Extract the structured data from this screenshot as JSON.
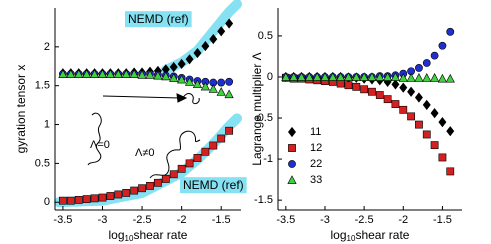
{
  "chart_data": [
    {
      "type": "scatter",
      "ylabel": "gyration tensor  x",
      "xlabel": [
        "log",
        "10",
        "shear rate"
      ],
      "x": [
        -3.5,
        -3.4,
        -3.3,
        -3.2,
        -3.1,
        -3,
        -2.9,
        -2.8,
        -2.7,
        -2.6,
        -2.5,
        -2.4,
        -2.3,
        -2.2,
        -2.1,
        -2,
        -1.9,
        -1.8,
        -1.7,
        -1.6,
        -1.5,
        -1.4
      ],
      "series": [
        {
          "marker": "diamond",
          "color": "#000000",
          "values": [
            1.66,
            1.66,
            1.66,
            1.66,
            1.66,
            1.66,
            1.66,
            1.66,
            1.66,
            1.67,
            1.67,
            1.68,
            1.69,
            1.71,
            1.74,
            1.78,
            1.84,
            1.92,
            2.01,
            2.1,
            2.2,
            2.3
          ]
        },
        {
          "marker": "square",
          "color": "#d42020",
          "values": [
            0.02,
            0.02,
            0.03,
            0.04,
            0.05,
            0.06,
            0.08,
            0.1,
            0.12,
            0.15,
            0.18,
            0.21,
            0.25,
            0.3,
            0.36,
            0.43,
            0.5,
            0.57,
            0.65,
            0.73,
            0.82,
            0.92
          ]
        },
        {
          "marker": "circle",
          "color": "#2030d0",
          "values": [
            1.65,
            1.65,
            1.65,
            1.65,
            1.65,
            1.65,
            1.65,
            1.65,
            1.65,
            1.65,
            1.65,
            1.65,
            1.64,
            1.63,
            1.62,
            1.6,
            1.58,
            1.56,
            1.55,
            1.54,
            1.54,
            1.55
          ]
        },
        {
          "marker": "triangle",
          "color": "#40d040",
          "values": [
            1.65,
            1.65,
            1.65,
            1.65,
            1.65,
            1.65,
            1.65,
            1.65,
            1.65,
            1.65,
            1.64,
            1.64,
            1.63,
            1.62,
            1.6,
            1.58,
            1.55,
            1.52,
            1.49,
            1.46,
            1.42,
            1.39
          ]
        }
      ],
      "reference": [
        {
          "label": "NEMD (ref)",
          "color": "#86e2f2",
          "x": [
            -2.2,
            -2,
            -1.8,
            -1.6,
            -1.4,
            -1.3
          ],
          "values": [
            1.7,
            1.8,
            1.95,
            2.2,
            2.45,
            2.55
          ]
        },
        {
          "label": "NEMD (ref)",
          "color": "#86e2f2",
          "x": [
            -3.55,
            -3,
            -2.5,
            -2,
            -1.8,
            -1.6,
            -1.4,
            -1.3
          ],
          "values": [
            0,
            0.02,
            0.12,
            0.38,
            0.55,
            0.75,
            0.98,
            1.08
          ]
        }
      ],
      "annotations": [
        "Λ=0",
        "Λ≠0"
      ],
      "xlim": [
        -3.6,
        -1.25
      ],
      "ylim": [
        -0.1,
        2.5
      ],
      "xticks": [
        -3.5,
        -3,
        -2.5,
        -2,
        -1.5
      ],
      "yticks": [
        0,
        0.5,
        1,
        1.5,
        2
      ]
    },
    {
      "type": "scatter",
      "ylabel": "Lagrange multiplier  Λ",
      "xlabel": [
        "log",
        "10",
        "shear rate"
      ],
      "x": [
        -3.5,
        -3.4,
        -3.3,
        -3.2,
        -3.1,
        -3,
        -2.9,
        -2.8,
        -2.7,
        -2.6,
        -2.5,
        -2.4,
        -2.3,
        -2.2,
        -2.1,
        -2,
        -1.9,
        -1.8,
        -1.7,
        -1.6,
        -1.5,
        -1.4
      ],
      "series": [
        {
          "name": "11",
          "marker": "diamond",
          "color": "#000000",
          "values": [
            0,
            0,
            0,
            0,
            0,
            0,
            0,
            0,
            -0.01,
            -0.01,
            -0.02,
            -0.03,
            -0.04,
            -0.06,
            -0.09,
            -0.13,
            -0.18,
            -0.25,
            -0.34,
            -0.44,
            -0.55,
            -0.66
          ]
        },
        {
          "name": "12",
          "marker": "square",
          "color": "#d42020",
          "values": [
            -0.01,
            -0.02,
            -0.02,
            -0.03,
            -0.04,
            -0.05,
            -0.06,
            -0.08,
            -0.1,
            -0.12,
            -0.15,
            -0.18,
            -0.22,
            -0.27,
            -0.33,
            -0.4,
            -0.48,
            -0.58,
            -0.7,
            -0.83,
            -0.98,
            -1.15
          ]
        },
        {
          "name": "22",
          "marker": "circle",
          "color": "#2030d0",
          "values": [
            0,
            0,
            0,
            0,
            0,
            0,
            0,
            0,
            0,
            0,
            0,
            0,
            0.01,
            0.01,
            0.02,
            0.04,
            0.07,
            0.11,
            0.17,
            0.26,
            0.38,
            0.55
          ]
        },
        {
          "name": "33",
          "marker": "triangle",
          "color": "#40d040",
          "values": [
            0,
            0,
            0,
            0,
            0,
            0,
            0,
            0,
            0,
            0,
            0,
            0,
            0,
            0,
            0,
            -0.01,
            -0.01,
            -0.01,
            -0.01,
            -0.01,
            -0.02,
            -0.02
          ]
        }
      ],
      "legend": "left",
      "xlim": [
        -3.6,
        -1.25
      ],
      "ylim": [
        -1.62,
        0.84
      ],
      "xticks": [
        -3.5,
        -3,
        -2.5,
        -2,
        -1.5
      ],
      "yticks": [
        -1.5,
        -1,
        -0.5,
        0,
        0.5
      ]
    }
  ]
}
